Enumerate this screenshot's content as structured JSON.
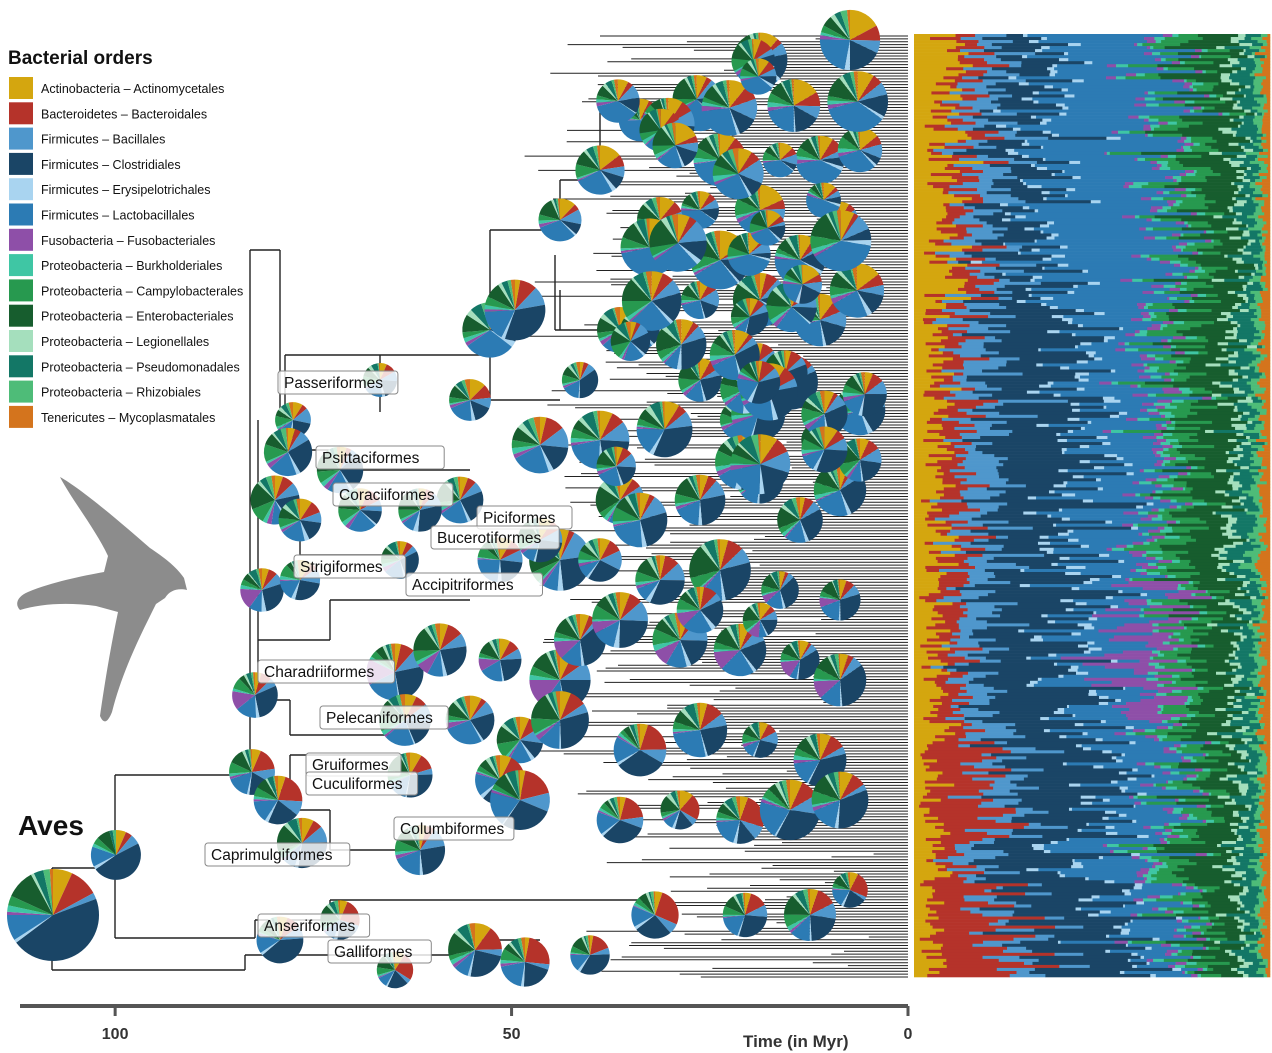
{
  "legend": {
    "title": "Bacterial orders",
    "items": [
      {
        "phylum": "Actinobacteria",
        "order": "Actinomycetales",
        "color": "#d4a60f"
      },
      {
        "phylum": "Bacteroidetes",
        "order": "Bacteroidales",
        "color": "#b5332a"
      },
      {
        "phylum": "Firmicutes",
        "order": "Bacillales",
        "color": "#4f97cc"
      },
      {
        "phylum": "Firmicutes",
        "order": "Clostridiales",
        "color": "#1a4566"
      },
      {
        "phylum": "Firmicutes",
        "order": "Erysipelotrichales",
        "color": "#a9d4f0"
      },
      {
        "phylum": "Firmicutes",
        "order": "Lactobacillales",
        "color": "#2c7bb4"
      },
      {
        "phylum": "Fusobacteria",
        "order": "Fusobacteriales",
        "color": "#8e4fa8"
      },
      {
        "phylum": "Proteobacteria",
        "order": "Burkholderiales",
        "color": "#3fc6a4"
      },
      {
        "phylum": "Proteobacteria",
        "order": "Campylobacterales",
        "color": "#27994f"
      },
      {
        "phylum": "Proteobacteria",
        "order": "Enterobacteriales",
        "color": "#175d2e"
      },
      {
        "phylum": "Proteobacteria",
        "order": "Legionellales",
        "color": "#a5dfbd"
      },
      {
        "phylum": "Proteobacteria",
        "order": "Pseudomonadales",
        "color": "#137766"
      },
      {
        "phylum": "Proteobacteria",
        "order": "Rhizobiales",
        "color": "#4ebc78"
      },
      {
        "phylum": "Tenericutes",
        "order": "Mycoplasmatales",
        "color": "#d4741d"
      }
    ]
  },
  "root_label": "Aves",
  "clades": [
    "Passeriformes",
    "Psittaciformes",
    "Coraciiformes",
    "Piciformes",
    "Bucerotiformes",
    "Strigiformes",
    "Accipitriformes",
    "Charadriiformes",
    "Pelecaniformes",
    "Gruiformes",
    "Cuculiformes",
    "Columbiformes",
    "Caprimulgiformes",
    "Anseriformes",
    "Galliformes"
  ],
  "axis": {
    "title": "Time (in Myr)",
    "ticks": [
      "100",
      "50",
      "0"
    ],
    "tick_values": [
      100,
      50,
      0
    ],
    "range": [
      112,
      0
    ]
  },
  "silhouette": "bird-of-prey-silhouette",
  "colors": {
    "branch": "#222222",
    "silhouette": "#8c8c8c",
    "axis": "#555555"
  }
}
